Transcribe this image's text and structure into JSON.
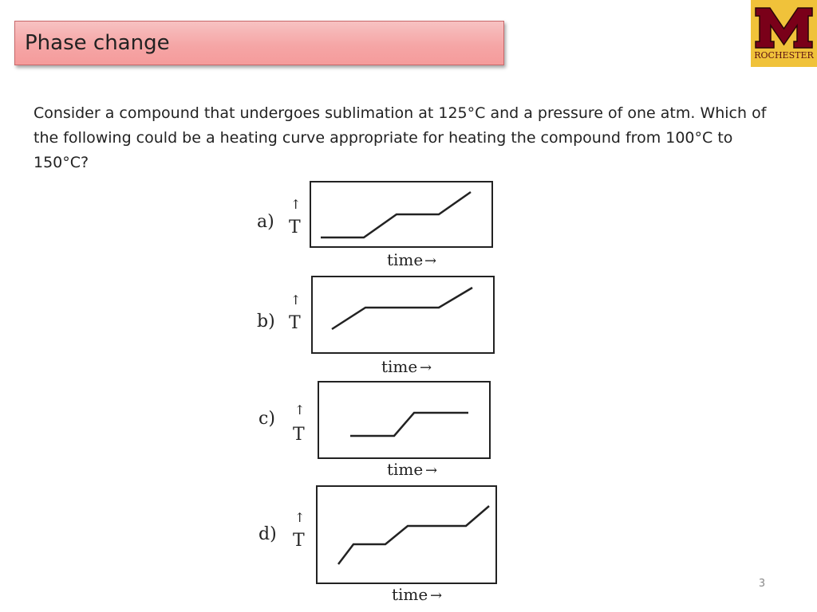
{
  "slide": {
    "title": "Phase change",
    "question": "Consider a compound that undergoes sublimation at 125°C and a pressure of one atm. Which of the following could be a heating curve appropriate for heating the compound from 100°C to 150°C?",
    "page_number": "3"
  },
  "logo": {
    "text": "ROCHESTER",
    "colors": {
      "gold": "#f0c23a",
      "maroon": "#7a0019"
    }
  },
  "options": [
    {
      "label": "a)",
      "axis_y": "T",
      "axis_x": "time"
    },
    {
      "label": "b)",
      "axis_y": "T",
      "axis_x": "time"
    },
    {
      "label": "c)",
      "axis_y": "T",
      "axis_x": "time"
    },
    {
      "label": "d)",
      "axis_y": "T",
      "axis_x": "time"
    }
  ],
  "arrows": {
    "up": "↑",
    "right": "→"
  }
}
